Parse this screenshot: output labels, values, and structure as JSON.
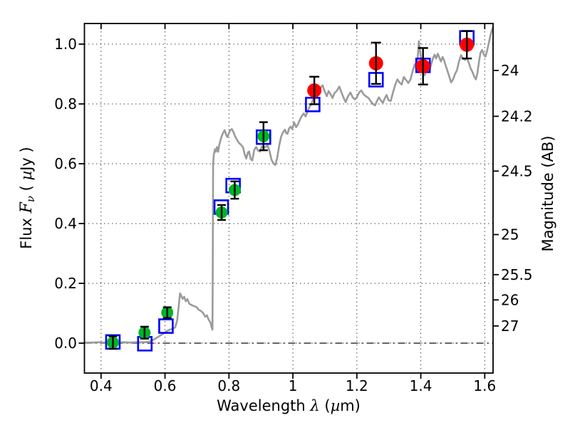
{
  "figure": {
    "background": "#ffffff"
  },
  "labels": {
    "x_prefix": "Wavelength ",
    "x_lambda": "λ",
    "x_open": " (",
    "x_mu": "µ",
    "x_suffix": "m)",
    "y_left_prefix": "Flux ",
    "y_left_F": "F",
    "y_left_nu": "ν",
    "y_left_open": " ( ",
    "y_left_mu": "µ",
    "y_left_suffix": "Jy )",
    "y_right": "Magnitude (AB)"
  },
  "chart_data": {
    "type": "line+scatter",
    "title": "",
    "xlabel": "Wavelength λ (µm)",
    "ylabel_left": "Flux Fν ( µJy )",
    "ylabel_right": "Magnitude (AB)",
    "xlim": [
      0.348,
      1.626
    ],
    "ylim_flux": [
      -0.1,
      1.069
    ],
    "x_ticks": [
      0.4,
      0.6,
      0.8,
      1.0,
      1.2,
      1.4,
      1.6
    ],
    "x_tick_labels": [
      "0.4",
      "0.6",
      "0.8",
      "1",
      "1.2",
      "1.4",
      "1.6"
    ],
    "flux_ticks": [
      0.0,
      0.2,
      0.4,
      0.6,
      0.8,
      1.0
    ],
    "flux_tick_labels": [
      "0.0",
      "0.2",
      "0.4",
      "0.6",
      "0.8",
      "1.0"
    ],
    "mag_ticks": [
      24,
      24.2,
      24.5,
      25,
      25.5,
      26,
      27
    ],
    "mag_tick_labels": [
      "24",
      "24.2",
      "24.5",
      "25",
      "25.5",
      "26",
      "27"
    ],
    "grid": "dotted",
    "zero_line": {
      "flux": 0.0,
      "style": "dash-dot"
    },
    "colors": {
      "spectrum": "#9b9b9b",
      "square": "#0000ff",
      "green": "#00b428",
      "red": "#ff0000",
      "errorbar": "#000000"
    },
    "series": [
      {
        "name": "model-spectrum",
        "type": "line",
        "color_key": "spectrum",
        "points": [
          [
            0.348,
            0.002
          ],
          [
            0.37,
            0.002
          ],
          [
            0.39,
            0.003
          ],
          [
            0.41,
            0.002
          ],
          [
            0.43,
            0.003
          ],
          [
            0.45,
            0.002
          ],
          [
            0.47,
            0.003
          ],
          [
            0.49,
            0.002
          ],
          [
            0.51,
            0.003
          ],
          [
            0.53,
            0.003
          ],
          [
            0.55,
            0.004
          ],
          [
            0.565,
            0.012
          ],
          [
            0.58,
            0.022
          ],
          [
            0.595,
            0.032
          ],
          [
            0.605,
            0.04
          ],
          [
            0.615,
            0.045
          ],
          [
            0.625,
            0.048
          ],
          [
            0.632,
            0.053
          ],
          [
            0.638,
            0.075
          ],
          [
            0.643,
            0.125
          ],
          [
            0.647,
            0.167
          ],
          [
            0.651,
            0.158
          ],
          [
            0.655,
            0.148
          ],
          [
            0.66,
            0.155
          ],
          [
            0.665,
            0.14
          ],
          [
            0.67,
            0.147
          ],
          [
            0.676,
            0.132
          ],
          [
            0.682,
            0.128
          ],
          [
            0.69,
            0.124
          ],
          [
            0.698,
            0.121
          ],
          [
            0.705,
            0.112
          ],
          [
            0.712,
            0.108
          ],
          [
            0.72,
            0.1
          ],
          [
            0.726,
            0.088
          ],
          [
            0.731,
            0.093
          ],
          [
            0.737,
            0.077
          ],
          [
            0.742,
            0.07
          ],
          [
            0.746,
            0.052
          ],
          [
            0.7485,
            0.045
          ],
          [
            0.7495,
            0.3
          ],
          [
            0.7505,
            0.6
          ],
          [
            0.753,
            0.632
          ],
          [
            0.756,
            0.648
          ],
          [
            0.759,
            0.64
          ],
          [
            0.7625,
            0.656
          ],
          [
            0.766,
            0.64
          ],
          [
            0.77,
            0.665
          ],
          [
            0.776,
            0.688
          ],
          [
            0.781,
            0.702
          ],
          [
            0.7865,
            0.712
          ],
          [
            0.791,
            0.697
          ],
          [
            0.795,
            0.689
          ],
          [
            0.799,
            0.7
          ],
          [
            0.804,
            0.712
          ],
          [
            0.809,
            0.716
          ],
          [
            0.814,
            0.706
          ],
          [
            0.819,
            0.692
          ],
          [
            0.825,
            0.68
          ],
          [
            0.831,
            0.67
          ],
          [
            0.838,
            0.663
          ],
          [
            0.844,
            0.655
          ],
          [
            0.849,
            0.632
          ],
          [
            0.854,
            0.617
          ],
          [
            0.859,
            0.637
          ],
          [
            0.863,
            0.641
          ],
          [
            0.868,
            0.616
          ],
          [
            0.873,
            0.611
          ],
          [
            0.879,
            0.646
          ],
          [
            0.885,
            0.656
          ],
          [
            0.891,
            0.644
          ],
          [
            0.897,
            0.641
          ],
          [
            0.903,
            0.658
          ],
          [
            0.909,
            0.652
          ],
          [
            0.915,
            0.657
          ],
          [
            0.921,
            0.661
          ],
          [
            0.927,
            0.642
          ],
          [
            0.933,
            0.614
          ],
          [
            0.939,
            0.601
          ],
          [
            0.945,
            0.596
          ],
          [
            0.951,
            0.62
          ],
          [
            0.957,
            0.66
          ],
          [
            0.963,
            0.69
          ],
          [
            0.969,
            0.705
          ],
          [
            0.975,
            0.714
          ],
          [
            0.979,
            0.702
          ],
          [
            0.983,
            0.7
          ],
          [
            0.988,
            0.718
          ],
          [
            0.993,
            0.724
          ],
          [
            0.998,
            0.716
          ],
          [
            1.004,
            0.738
          ],
          [
            1.01,
            0.722
          ],
          [
            1.016,
            0.732
          ],
          [
            1.022,
            0.748
          ],
          [
            1.028,
            0.76
          ],
          [
            1.034,
            0.768
          ],
          [
            1.04,
            0.758
          ],
          [
            1.046,
            0.775
          ],
          [
            1.052,
            0.79
          ],
          [
            1.058,
            0.8
          ],
          [
            1.065,
            0.82
          ],
          [
            1.072,
            0.828
          ],
          [
            1.08,
            0.84
          ],
          [
            1.087,
            0.855
          ],
          [
            1.093,
            0.862
          ],
          [
            1.1,
            0.84
          ],
          [
            1.106,
            0.826
          ],
          [
            1.112,
            0.843
          ],
          [
            1.118,
            0.832
          ],
          [
            1.124,
            0.82
          ],
          [
            1.13,
            0.836
          ],
          [
            1.138,
            0.845
          ],
          [
            1.145,
            0.858
          ],
          [
            1.152,
            0.838
          ],
          [
            1.158,
            0.822
          ],
          [
            1.165,
            0.806
          ],
          [
            1.172,
            0.825
          ],
          [
            1.18,
            0.838
          ],
          [
            1.187,
            0.822
          ],
          [
            1.194,
            0.815
          ],
          [
            1.2,
            0.822
          ],
          [
            1.207,
            0.838
          ],
          [
            1.214,
            0.845
          ],
          [
            1.221,
            0.832
          ],
          [
            1.228,
            0.826
          ],
          [
            1.236,
            0.82
          ],
          [
            1.243,
            0.81
          ],
          [
            1.25,
            0.8
          ],
          [
            1.257,
            0.795
          ],
          [
            1.263,
            0.81
          ],
          [
            1.269,
            0.822
          ],
          [
            1.275,
            0.812
          ],
          [
            1.281,
            0.803
          ],
          [
            1.287,
            0.818
          ],
          [
            1.293,
            0.83
          ],
          [
            1.299,
            0.812
          ],
          [
            1.306,
            0.81
          ],
          [
            1.313,
            0.838
          ],
          [
            1.32,
            0.864
          ],
          [
            1.327,
            0.882
          ],
          [
            1.333,
            0.872
          ],
          [
            1.34,
            0.865
          ],
          [
            1.347,
            0.89
          ],
          [
            1.354,
            0.88
          ],
          [
            1.361,
            0.87
          ],
          [
            1.368,
            0.882
          ],
          [
            1.375,
            0.912
          ],
          [
            1.381,
            0.933
          ],
          [
            1.386,
            0.916
          ],
          [
            1.39,
            0.948
          ],
          [
            1.394,
            1.01
          ],
          [
            1.398,
            0.975
          ],
          [
            1.402,
            0.94
          ],
          [
            1.407,
            0.925
          ],
          [
            1.412,
            0.896
          ],
          [
            1.417,
            0.912
          ],
          [
            1.422,
            0.92
          ],
          [
            1.427,
            0.912
          ],
          [
            1.432,
            0.93
          ],
          [
            1.438,
            0.952
          ],
          [
            1.443,
            0.965
          ],
          [
            1.448,
            0.952
          ],
          [
            1.453,
            0.968
          ],
          [
            1.458,
            0.955
          ],
          [
            1.463,
            0.942
          ],
          [
            1.468,
            0.957
          ],
          [
            1.473,
            0.946
          ],
          [
            1.478,
            0.928
          ],
          [
            1.483,
            0.912
          ],
          [
            1.489,
            0.892
          ],
          [
            1.495,
            0.872
          ],
          [
            1.501,
            0.882
          ],
          [
            1.507,
            0.9
          ],
          [
            1.513,
            0.912
          ],
          [
            1.519,
            0.94
          ],
          [
            1.526,
            0.963
          ],
          [
            1.532,
            0.952
          ],
          [
            1.538,
            0.947
          ],
          [
            1.544,
            0.953
          ],
          [
            1.55,
            0.938
          ],
          [
            1.556,
            0.918
          ],
          [
            1.562,
            0.906
          ],
          [
            1.567,
            0.892
          ],
          [
            1.572,
            0.882
          ],
          [
            1.577,
            0.902
          ],
          [
            1.582,
            0.942
          ],
          [
            1.587,
            0.972
          ],
          [
            1.592,
            0.98
          ],
          [
            1.597,
            0.966
          ],
          [
            1.602,
            0.958
          ],
          [
            1.607,
            0.976
          ],
          [
            1.612,
            1.0
          ],
          [
            1.617,
            1.026
          ],
          [
            1.622,
            1.046
          ],
          [
            1.626,
            1.056
          ]
        ]
      },
      {
        "name": "model-photometry-squares",
        "type": "scatter",
        "marker": "open-square",
        "color_key": "square",
        "points": [
          [
            0.437,
            0.004
          ],
          [
            0.537,
            -0.002
          ],
          [
            0.603,
            0.057
          ],
          [
            0.776,
            0.455
          ],
          [
            0.813,
            0.527
          ],
          [
            0.908,
            0.689
          ],
          [
            1.062,
            0.798
          ],
          [
            1.26,
            0.881
          ],
          [
            1.407,
            0.929
          ],
          [
            1.544,
            1.021
          ]
        ]
      },
      {
        "name": "observed-photometry-green",
        "type": "scatter",
        "marker": "circle",
        "color_key": "green",
        "points_err": [
          [
            0.437,
            0.002,
            0.021
          ],
          [
            0.536,
            0.035,
            0.02
          ],
          [
            0.607,
            0.102,
            0.018
          ],
          [
            0.777,
            0.437,
            0.025
          ],
          [
            0.818,
            0.512,
            0.029
          ],
          [
            0.908,
            0.692,
            0.047
          ]
        ]
      },
      {
        "name": "observed-photometry-red",
        "type": "scatter",
        "marker": "circle",
        "color_key": "red",
        "points_err": [
          [
            1.067,
            0.845,
            0.046
          ],
          [
            1.26,
            0.936,
            0.069
          ],
          [
            1.407,
            0.926,
            0.061
          ],
          [
            1.544,
            0.998,
            0.046
          ]
        ]
      }
    ]
  }
}
